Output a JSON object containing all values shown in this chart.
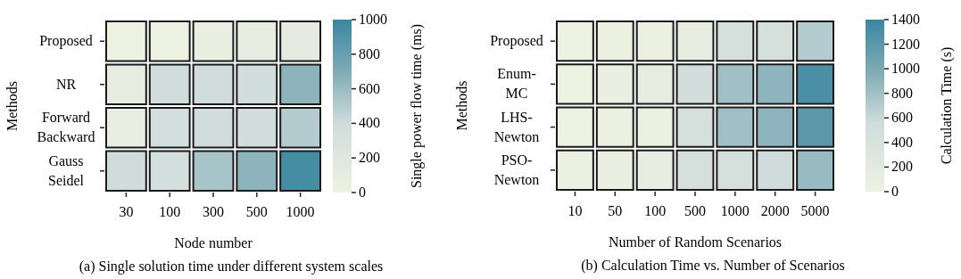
{
  "chart_data": [
    {
      "type": "heatmap",
      "title": "(a) Single solution time under different system scales",
      "xlabel": "Node number",
      "ylabel": "Methods",
      "clabel": "Single power flow time (ms)",
      "categories": [
        "30",
        "100",
        "300",
        "500",
        "1000"
      ],
      "y_categories": [
        "Proposed",
        "NR",
        "Forward Backward",
        "Gauss Seidel"
      ],
      "cells": [
        [
          20,
          20,
          60,
          100,
          120
        ],
        [
          100,
          380,
          380,
          370,
          650
        ],
        [
          80,
          350,
          380,
          360,
          500
        ],
        [
          400,
          350,
          550,
          650,
          950
        ]
      ],
      "clim": [
        0,
        1000
      ],
      "cticks": [
        0,
        200,
        400,
        600,
        800,
        1000
      ]
    },
    {
      "type": "heatmap",
      "title": "(b) Calculation Time vs. Number of Scenarios",
      "xlabel": "Number of Random Scenarios",
      "ylabel": "Methods",
      "clabel": "Calculation Time (s)",
      "categories": [
        "10",
        "50",
        "100",
        "500",
        "1000",
        "2000",
        "5000"
      ],
      "y_categories": [
        "Proposed",
        "Enum-MC",
        "LHS-Newton",
        "PSO-Newton"
      ],
      "cells": [
        [
          30,
          60,
          60,
          150,
          450,
          450,
          700
        ],
        [
          30,
          80,
          150,
          500,
          800,
          900,
          1300
        ],
        [
          30,
          60,
          60,
          450,
          800,
          900,
          1200
        ],
        [
          60,
          80,
          130,
          450,
          450,
          550,
          850
        ]
      ],
      "clim": [
        0,
        1400
      ],
      "cticks": [
        0,
        200,
        400,
        600,
        800,
        1000,
        1200,
        1400
      ]
    }
  ]
}
